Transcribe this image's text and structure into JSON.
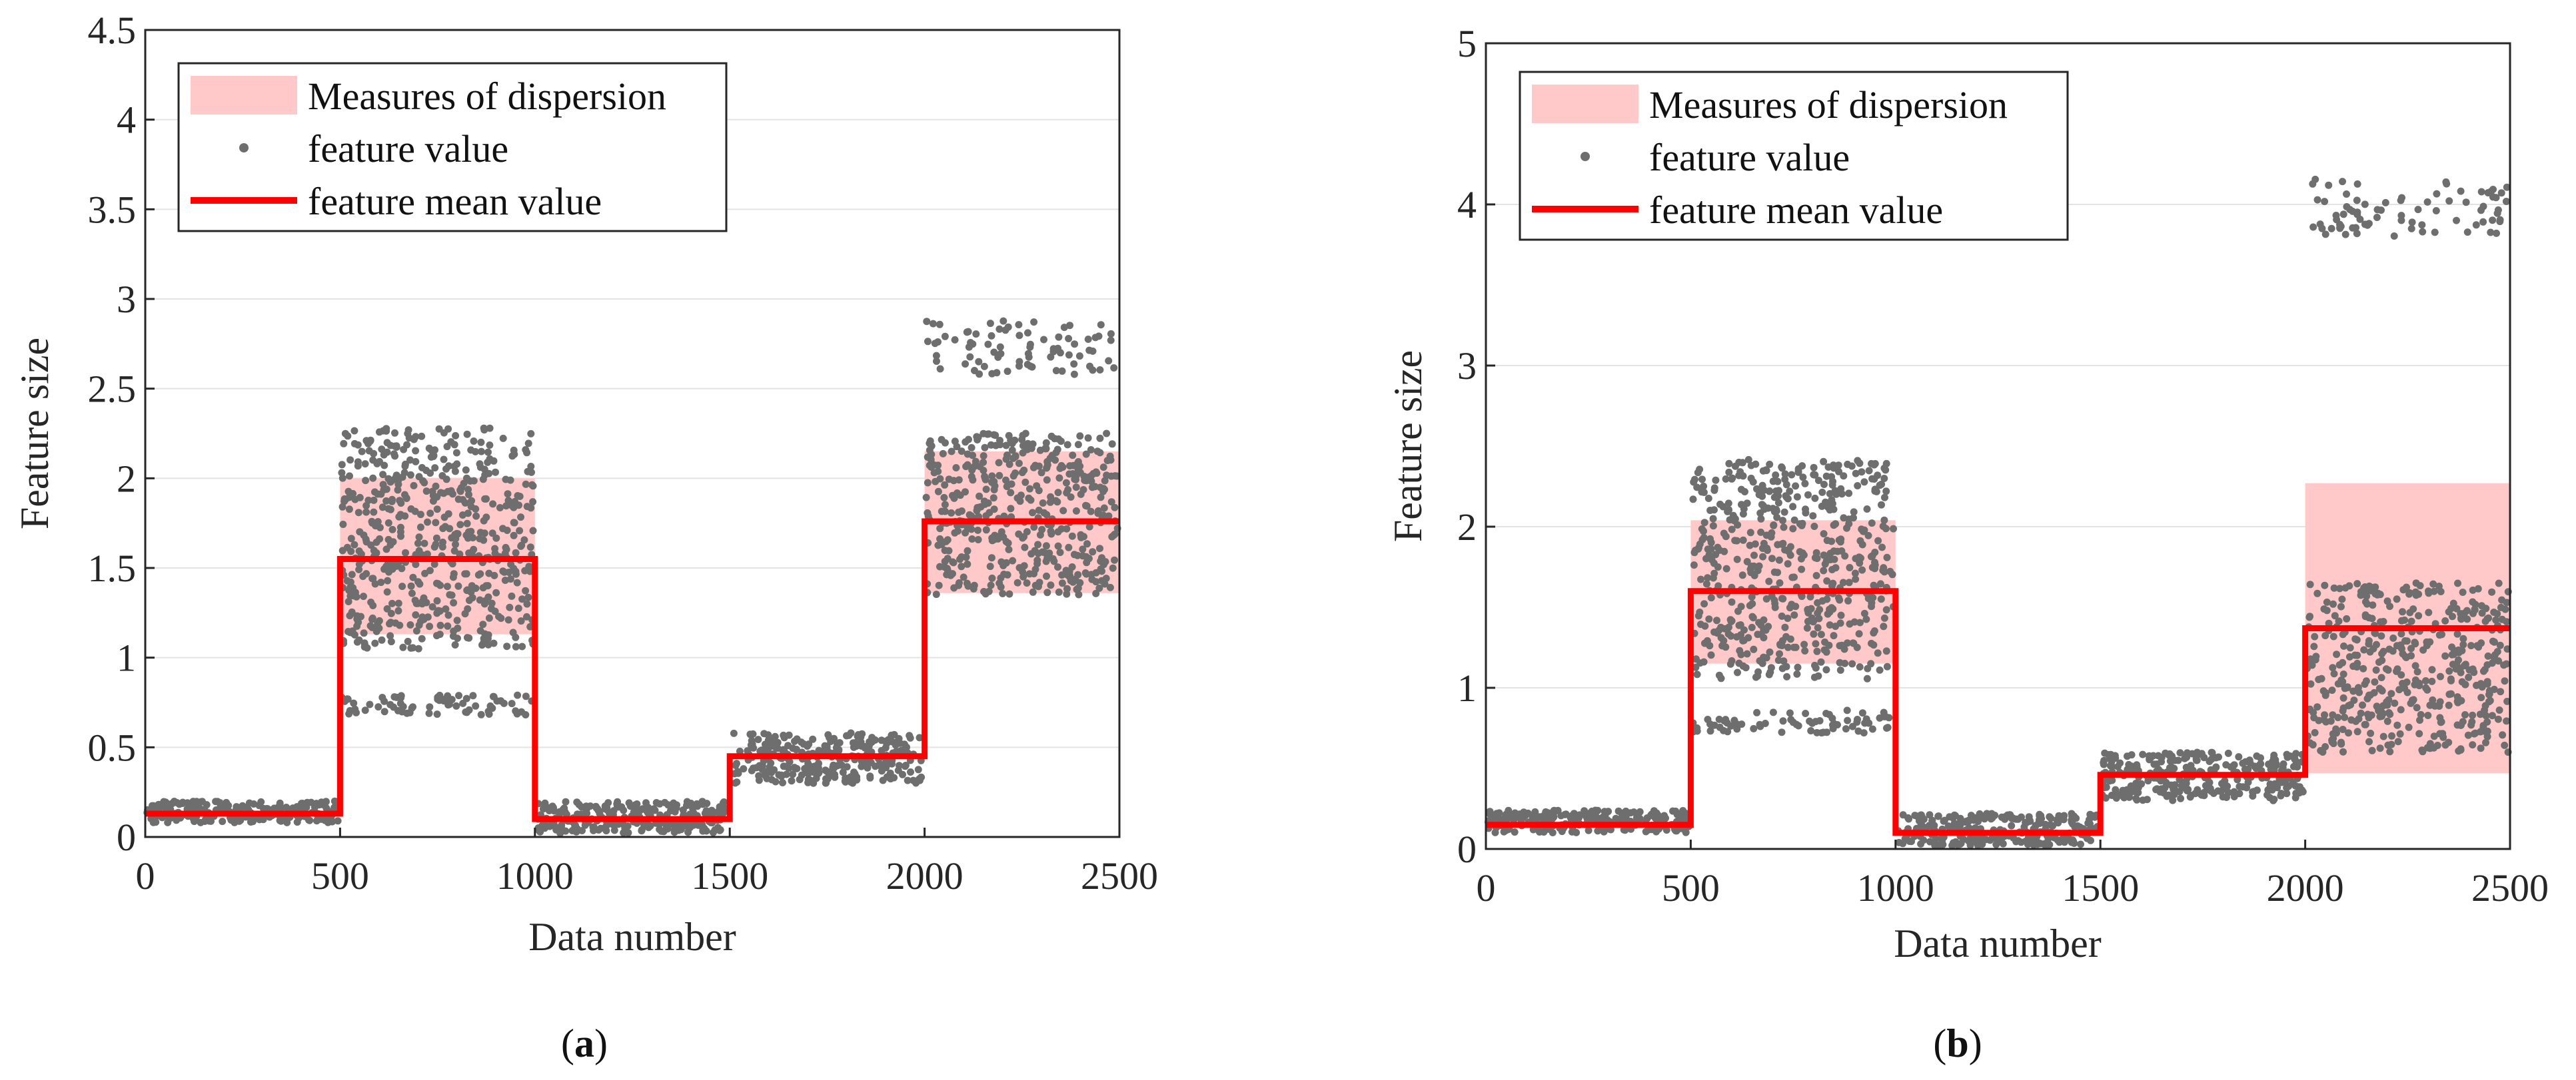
{
  "figure": {
    "colors": {
      "band": "#ffc9c9",
      "points": "#6e6e6e",
      "mean": "#ff0000",
      "axis": "#262626",
      "grid": "#e3e3e3"
    }
  },
  "chart_data": [
    {
      "type": "scatter",
      "panel_label": "a",
      "xlabel": "Data number",
      "ylabel": "Feature size",
      "xlim": [
        0,
        2500
      ],
      "ylim": [
        0,
        4.5
      ],
      "xticks": [
        "0",
        "500",
        "1000",
        "1500",
        "2000",
        "2500"
      ],
      "yticks": [
        "0",
        "0.5",
        "1",
        "1.5",
        "2",
        "2.5",
        "3",
        "3.5",
        "4",
        "4.5"
      ],
      "grid": "horizontal",
      "legend": {
        "position": "top-left",
        "entries": [
          "Measures of dispersion",
          "feature value",
          "feature mean value"
        ]
      },
      "mean_steps": [
        {
          "x0": 0,
          "x1": 500,
          "mean": 0.13
        },
        {
          "x0": 500,
          "x1": 1000,
          "mean": 1.55
        },
        {
          "x0": 1000,
          "x1": 1500,
          "mean": 0.1
        },
        {
          "x0": 1500,
          "x1": 2000,
          "mean": 0.45
        },
        {
          "x0": 2000,
          "x1": 2500,
          "mean": 1.76
        }
      ],
      "dispersion_bands": [
        {
          "x0": 500,
          "x1": 1000,
          "low": 1.13,
          "high": 2.0
        },
        {
          "x0": 2000,
          "x1": 2500,
          "low": 1.36,
          "high": 2.15
        }
      ],
      "point_clusters": [
        {
          "x0": 0,
          "x1": 500,
          "ymin": 0.08,
          "ymax": 0.2,
          "n": 240
        },
        {
          "x0": 500,
          "x1": 1000,
          "ymin": 1.05,
          "ymax": 2.28,
          "n": 560
        },
        {
          "x0": 500,
          "x1": 1000,
          "ymin": 0.68,
          "ymax": 0.8,
          "n": 70
        },
        {
          "x0": 1000,
          "x1": 1500,
          "ymin": 0.02,
          "ymax": 0.2,
          "n": 260
        },
        {
          "x0": 1500,
          "x1": 2000,
          "ymin": 0.3,
          "ymax": 0.58,
          "n": 300
        },
        {
          "x0": 2000,
          "x1": 2500,
          "ymin": 1.35,
          "ymax": 2.25,
          "n": 460
        },
        {
          "x0": 2000,
          "x1": 2500,
          "ymin": 2.58,
          "ymax": 2.88,
          "n": 80
        }
      ]
    },
    {
      "type": "scatter",
      "panel_label": "b",
      "xlabel": "Data number",
      "ylabel": "Feature size",
      "xlim": [
        0,
        2500
      ],
      "ylim": [
        0,
        5
      ],
      "xticks": [
        "0",
        "500",
        "1000",
        "1500",
        "2000",
        "2500"
      ],
      "yticks": [
        "0",
        "1",
        "2",
        "3",
        "4",
        "5"
      ],
      "grid": "horizontal",
      "legend": {
        "position": "top-left",
        "entries": [
          "Measures of dispersion",
          "feature value",
          "feature mean value"
        ]
      },
      "mean_steps": [
        {
          "x0": 0,
          "x1": 500,
          "mean": 0.15
        },
        {
          "x0": 500,
          "x1": 1000,
          "mean": 1.6
        },
        {
          "x0": 1000,
          "x1": 1500,
          "mean": 0.1
        },
        {
          "x0": 1500,
          "x1": 2000,
          "mean": 0.46
        },
        {
          "x0": 2000,
          "x1": 2500,
          "mean": 1.37
        }
      ],
      "dispersion_bands": [
        {
          "x0": 500,
          "x1": 1000,
          "low": 1.15,
          "high": 2.04
        },
        {
          "x0": 2000,
          "x1": 2500,
          "low": 0.47,
          "high": 2.27
        }
      ],
      "point_clusters": [
        {
          "x0": 0,
          "x1": 500,
          "ymin": 0.1,
          "ymax": 0.24,
          "n": 240
        },
        {
          "x0": 500,
          "x1": 1000,
          "ymin": 1.05,
          "ymax": 2.42,
          "n": 560
        },
        {
          "x0": 500,
          "x1": 1000,
          "ymin": 0.72,
          "ymax": 0.86,
          "n": 70
        },
        {
          "x0": 1000,
          "x1": 1500,
          "ymin": 0.02,
          "ymax": 0.22,
          "n": 260
        },
        {
          "x0": 1500,
          "x1": 2000,
          "ymin": 0.3,
          "ymax": 0.6,
          "n": 300
        },
        {
          "x0": 2000,
          "x1": 2500,
          "ymin": 0.6,
          "ymax": 1.65,
          "n": 460
        },
        {
          "x0": 2000,
          "x1": 2500,
          "ymin": 3.8,
          "ymax": 4.18,
          "n": 80
        }
      ]
    }
  ]
}
